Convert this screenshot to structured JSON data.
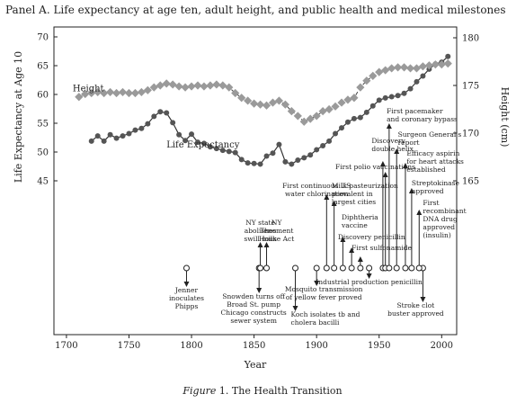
{
  "title": "Panel A. Life expectancy at age ten, adult height, and public health and medical milestones",
  "caption": {
    "prefix": "Figure",
    "rest": " 1. The Health Transition"
  },
  "chart_data": {
    "type": "line",
    "title": "Panel A. Life expectancy at age ten, adult height, and public health and medical milestones",
    "xlabel": "Year",
    "ylabel_left": "Life Expectancy at Age 10",
    "ylabel_right": "Height (cm)",
    "xlim": [
      1690,
      2012
    ],
    "ylim_left": [
      45,
      71
    ],
    "ylim_right": [
      165,
      181
    ],
    "xticks": [
      1700,
      1750,
      1800,
      1850,
      1900,
      1950,
      2000
    ],
    "yticks_left": [
      45,
      50,
      55,
      60,
      65,
      70
    ],
    "yticks_right": [
      165,
      170,
      175,
      180
    ],
    "grid": false,
    "series": [
      {
        "name": "Life Expectancy",
        "axis": "left",
        "marker": "circle",
        "color": "#555555",
        "label_at": [
          1780,
          50.8
        ],
        "x": [
          1720,
          1725,
          1730,
          1735,
          1740,
          1745,
          1750,
          1755,
          1760,
          1765,
          1770,
          1775,
          1780,
          1785,
          1790,
          1795,
          1800,
          1805,
          1810,
          1815,
          1820,
          1825,
          1830,
          1835,
          1840,
          1845,
          1850,
          1855,
          1860,
          1865,
          1870,
          1875,
          1880,
          1885,
          1890,
          1895,
          1900,
          1905,
          1910,
          1915,
          1920,
          1925,
          1930,
          1935,
          1940,
          1945,
          1950,
          1955,
          1960,
          1965,
          1970,
          1975,
          1980,
          1985,
          1990,
          1995,
          2000,
          2005
        ],
        "values": [
          51.9,
          52.8,
          51.9,
          53.0,
          52.4,
          52.8,
          53.2,
          53.8,
          54.1,
          54.9,
          56.2,
          57.0,
          56.8,
          55.1,
          53.0,
          52.0,
          53.1,
          51.7,
          51.5,
          50.9,
          50.6,
          50.3,
          50.1,
          49.9,
          48.7,
          48.1,
          48.0,
          47.9,
          49.3,
          49.8,
          51.3,
          48.3,
          47.9,
          48.6,
          49.0,
          49.5,
          50.4,
          51.1,
          51.9,
          53.2,
          54.2,
          55.2,
          55.8,
          56.0,
          56.9,
          58.0,
          59.0,
          59.4,
          59.6,
          59.8,
          60.2,
          61.0,
          62.2,
          63.2,
          64.4,
          65.3,
          65.6,
          66.6
        ]
      },
      {
        "name": "Height",
        "axis": "right",
        "marker": "diamond",
        "color": "#9a9a9a",
        "label_at": [
          1705,
          174.4
        ],
        "x": [
          1710,
          1715,
          1720,
          1725,
          1730,
          1735,
          1740,
          1745,
          1750,
          1755,
          1760,
          1765,
          1770,
          1775,
          1780,
          1785,
          1790,
          1795,
          1800,
          1805,
          1810,
          1815,
          1820,
          1825,
          1830,
          1835,
          1840,
          1845,
          1850,
          1855,
          1860,
          1865,
          1870,
          1875,
          1880,
          1885,
          1890,
          1895,
          1900,
          1905,
          1910,
          1915,
          1920,
          1925,
          1930,
          1935,
          1940,
          1945,
          1950,
          1955,
          1960,
          1965,
          1970,
          1975,
          1980,
          1985,
          1990,
          1995,
          2000,
          2005
        ],
        "values": [
          173.8,
          174.1,
          174.2,
          174.3,
          174.2,
          174.3,
          174.2,
          174.3,
          174.2,
          174.2,
          174.3,
          174.5,
          174.8,
          175.0,
          175.2,
          175.1,
          174.9,
          174.8,
          174.9,
          175.0,
          174.9,
          175.0,
          175.1,
          175.0,
          174.8,
          174.2,
          173.7,
          173.4,
          173.1,
          173.0,
          172.9,
          173.2,
          173.4,
          173.0,
          172.3,
          171.8,
          171.2,
          171.5,
          171.8,
          172.3,
          172.5,
          172.8,
          173.2,
          173.5,
          173.7,
          174.8,
          175.5,
          176.0,
          176.4,
          176.6,
          176.8,
          176.9,
          176.9,
          176.8,
          176.8,
          177.0,
          177.1,
          177.2,
          177.2,
          177.3
        ]
      }
    ],
    "milestones_below": [
      {
        "year": 1796,
        "lines": [
          "Jenner",
          "inoculates",
          "Phipps"
        ],
        "arrow": "down"
      },
      {
        "year": 1854,
        "lines": [
          "Snowden turns off",
          "Broad St. pump",
          "Chicago constructs",
          "sewer system"
        ],
        "arrow": "down"
      },
      {
        "year": 1883,
        "lines": [
          "Koch isolates tb and",
          "cholera bacilli"
        ],
        "arrow": "down"
      },
      {
        "year": 1900,
        "lines": [
          "Mosquito transmission",
          "of yellow fever proved"
        ],
        "arrow": "down"
      },
      {
        "year": 1942,
        "lines": [
          "Industrial production penicillin"
        ],
        "arrow": "down"
      },
      {
        "year": 1985,
        "lines": [
          "Stroke clot",
          "buster approved"
        ],
        "arrow": "down"
      }
    ],
    "milestones_above": [
      {
        "year": 1855,
        "lines": [
          "NY state",
          "abolishes",
          "swill milk"
        ],
        "arrow": "up"
      },
      {
        "year": 1860,
        "lines": [
          "NY",
          "Tenement",
          "House Act"
        ],
        "arrow": "up"
      },
      {
        "year": 1908,
        "lines": [
          "First continuous US",
          "water chlorination"
        ],
        "arrow": "up"
      },
      {
        "year": 1914,
        "lines": [
          "Milk pasteurization",
          "prevalent in",
          "largest cities"
        ],
        "arrow": "up"
      },
      {
        "year": 1921,
        "lines": [
          "Diphtheria",
          "vaccine"
        ],
        "arrow": "up"
      },
      {
        "year": 1928,
        "lines": [
          "Discovery penicillin"
        ],
        "arrow": "up"
      },
      {
        "year": 1935,
        "lines": [
          "First sulfonamide"
        ],
        "arrow": "up"
      },
      {
        "year": 1953,
        "lines": [
          "Discovery",
          "double helix"
        ],
        "arrow": "up"
      },
      {
        "year": 1955,
        "lines": [
          "First polio vaccinations"
        ],
        "arrow": "up"
      },
      {
        "year": 1958,
        "lines": [
          "First pacemaker",
          "and coronary bypass"
        ],
        "arrow": "up"
      },
      {
        "year": 1964,
        "lines": [
          "Surgeon General's",
          "report"
        ],
        "arrow": "up"
      },
      {
        "year": 1971,
        "lines": [
          "Efficacy aspirin",
          "for heart attacks",
          "established"
        ],
        "arrow": "up"
      },
      {
        "year": 1976,
        "lines": [
          "Streptokinase",
          "approved"
        ],
        "arrow": "up"
      },
      {
        "year": 1982,
        "lines": [
          "First",
          "recombinant",
          "DNA drug",
          "approved",
          "(insulin)"
        ],
        "arrow": "up"
      }
    ]
  }
}
